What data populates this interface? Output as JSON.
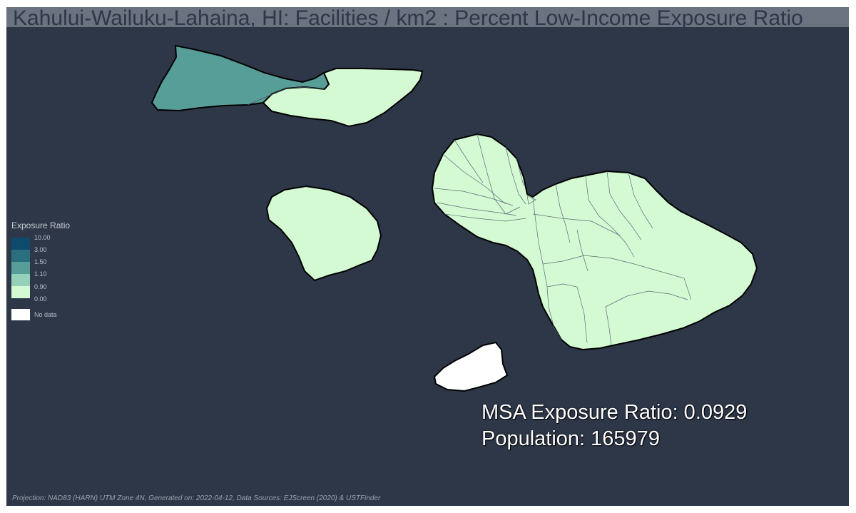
{
  "title": "Kahului-Wailuku-Lahaina, HI: Facilities / km2 : Percent Low-Income Exposure Ratio",
  "legend": {
    "title": "Exposure Ratio",
    "classes": [
      {
        "label": "10.00",
        "color": "#0d4a6b"
      },
      {
        "label": "3.00",
        "color": "#2a6f7e"
      },
      {
        "label": "1.50",
        "color": "#579e98"
      },
      {
        "label": "1.10",
        "color": "#95d1b8"
      },
      {
        "label": "0.90",
        "color": "#d4fad4"
      },
      {
        "label": "0.00",
        "color": ""
      }
    ],
    "no_data_label": "No data",
    "no_data_color": "#ffffff"
  },
  "stats": {
    "msa_exposure_ratio": "MSA Exposure Ratio: 0.0929",
    "population": "Population: 165979"
  },
  "footer": "Projection: NAD83 (HARN) UTM Zone 4N, Generated on: 2022-04-12, Data Sources: EJScreen (2020) & USTFinder",
  "colors": {
    "background": "#2d3748",
    "title_bar": "#6b7280",
    "low_class": "#d4fad4",
    "mid_class": "#579e98",
    "no_data": "#ffffff"
  }
}
